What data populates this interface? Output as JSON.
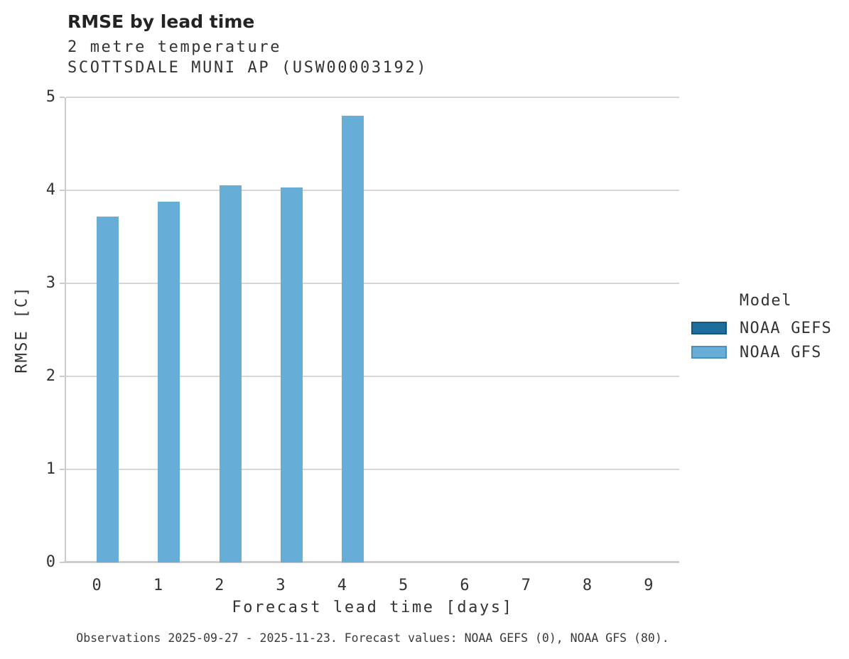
{
  "header": {
    "title": "RMSE by lead time",
    "subtitle_line1": "2 metre temperature",
    "subtitle_line2": "SCOTTSDALE MUNI AP (USW00003192)"
  },
  "chart_data": {
    "type": "bar",
    "title": "RMSE by lead time",
    "subtitle": [
      "2 metre temperature",
      "SCOTTSDALE MUNI AP (USW00003192)"
    ],
    "xlabel": "Forecast lead time [days]",
    "ylabel": "RMSE [C]",
    "categories": [
      "0",
      "1",
      "2",
      "3",
      "4",
      "5",
      "6",
      "7",
      "8",
      "9"
    ],
    "yticks": [
      0,
      1,
      2,
      3,
      4,
      5
    ],
    "ylim": [
      0,
      5
    ],
    "grid": "horizontal-only",
    "legend_position": "right",
    "legend_title": "Model",
    "series": [
      {
        "name": "NOAA GEFS",
        "color": "#1d6e9d",
        "values": [
          null,
          null,
          null,
          null,
          null,
          null,
          null,
          null,
          null,
          null
        ]
      },
      {
        "name": "NOAA GFS",
        "color": "#66aed8",
        "values": [
          3.72,
          3.88,
          4.05,
          4.03,
          4.8,
          null,
          null,
          null,
          null,
          null
        ]
      }
    ]
  },
  "legend": {
    "title": "Model",
    "items": [
      {
        "label": "NOAA GEFS",
        "color": "#1d6e9d",
        "border": "#15567c"
      },
      {
        "label": "NOAA GFS",
        "color": "#66aed8",
        "border": "#4f90ba"
      }
    ]
  },
  "colors": {
    "grid": "#d6d6d6",
    "axis": "#cccccc",
    "text": "#333333"
  },
  "footnote": "Observations 2025-09-27 - 2025-11-23. Forecast values: NOAA GEFS (0), NOAA GFS (80)."
}
